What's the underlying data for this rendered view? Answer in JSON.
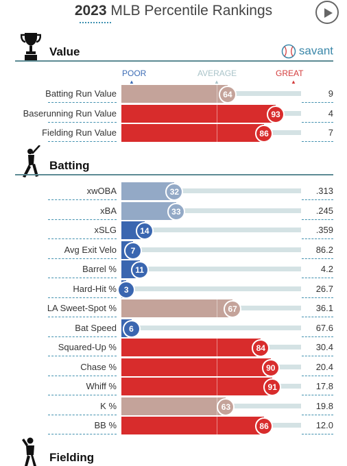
{
  "header": {
    "year": "2023",
    "title": "MLB Percentile Rankings"
  },
  "icons": {
    "play": "play-icon",
    "value": "trophy-icon",
    "batting": "batter-icon",
    "fielding": "fielder-icon",
    "savant": "baseball-icon"
  },
  "colors": {
    "great": "#d82c2c",
    "poor": "#3a66b0",
    "neutral": "#c7aaa3",
    "track": "#d4e2e4",
    "rule": "#5b8a93",
    "dash": "#3f8fae",
    "savant": "#3a87a9"
  },
  "sections": {
    "value": {
      "label": "Value",
      "brand": "savant",
      "scale": {
        "poor": "POOR",
        "average": "AVERAGE",
        "great": "GREAT"
      }
    },
    "batting": {
      "label": "Batting"
    },
    "fielding": {
      "label": "Fielding"
    }
  },
  "chart_data": {
    "type": "bar",
    "orientation": "horizontal",
    "title": "2023 MLB Percentile Rankings",
    "xlim": [
      0,
      100
    ],
    "groups": [
      {
        "name": "Value",
        "rows": [
          {
            "metric": "Batting Run Value",
            "percentile": 64,
            "value": "9"
          },
          {
            "metric": "Baserunning Run Value",
            "percentile": 93,
            "value": "4"
          },
          {
            "metric": "Fielding Run Value",
            "percentile": 86,
            "value": "7"
          }
        ]
      },
      {
        "name": "Batting",
        "rows": [
          {
            "metric": "xwOBA",
            "percentile": 32,
            "value": ".313"
          },
          {
            "metric": "xBA",
            "percentile": 33,
            "value": ".245"
          },
          {
            "metric": "xSLG",
            "percentile": 14,
            "value": ".359"
          },
          {
            "metric": "Avg Exit Velo",
            "percentile": 7,
            "value": "86.2"
          },
          {
            "metric": "Barrel %",
            "percentile": 11,
            "value": "4.2"
          },
          {
            "metric": "Hard-Hit %",
            "percentile": 3,
            "value": "26.7"
          },
          {
            "metric": "LA Sweet-Spot %",
            "percentile": 67,
            "value": "36.1"
          },
          {
            "metric": "Bat Speed",
            "percentile": 6,
            "value": "67.6"
          },
          {
            "metric": "Squared-Up %",
            "percentile": 84,
            "value": "30.4"
          },
          {
            "metric": "Chase %",
            "percentile": 90,
            "value": "20.4"
          },
          {
            "metric": "Whiff %",
            "percentile": 91,
            "value": "17.8"
          },
          {
            "metric": "K %",
            "percentile": 63,
            "value": "19.8"
          },
          {
            "metric": "BB %",
            "percentile": 86,
            "value": "12.0"
          }
        ]
      },
      {
        "name": "Fielding",
        "rows": []
      }
    ]
  }
}
